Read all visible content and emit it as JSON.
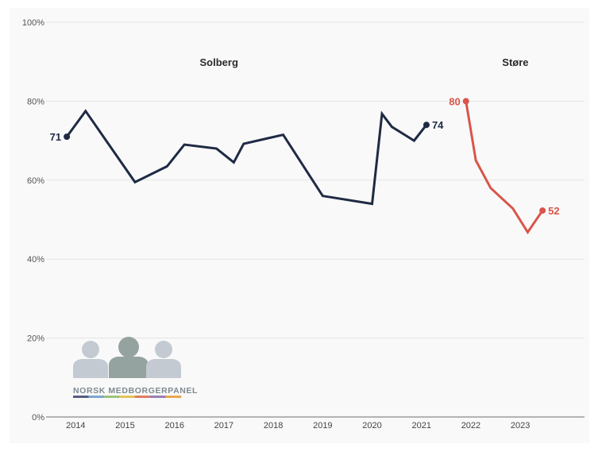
{
  "chart_data": {
    "type": "line",
    "y_ticks": [
      "0%",
      "20%",
      "40%",
      "60%",
      "80%",
      "100%"
    ],
    "ylim": [
      0,
      100
    ],
    "grid": true,
    "x_ticks": [
      "2014",
      "2015",
      "2016",
      "2017",
      "2018",
      "2019",
      "2020",
      "2021",
      "2022",
      "2023"
    ],
    "xlim": [
      2013.4,
      2024.3
    ],
    "periods": [
      {
        "label": "Solberg",
        "x": 2016.9
      },
      {
        "label": "Støre",
        "x": 2022.9
      }
    ],
    "series": [
      {
        "color": "#1f2a44",
        "x": [
          2013.82,
          2014.2,
          2015.2,
          2015.85,
          2016.2,
          2016.85,
          2017.2,
          2017.4,
          2017.85,
          2018.2,
          2019.0,
          2020.0,
          2020.2,
          2020.4,
          2020.85,
          2021.1
        ],
        "values": [
          71,
          77.5,
          59.5,
          63.5,
          69,
          68,
          64.5,
          69.2,
          70.5,
          71.5,
          56,
          54,
          76.8,
          73.5,
          70,
          74
        ],
        "start_label": "71",
        "end_label": "74"
      },
      {
        "color": "#d9554a",
        "x": [
          2021.9,
          2022.1,
          2022.4,
          2022.85,
          2023.15,
          2023.45
        ],
        "values": [
          80,
          65,
          58,
          52.8,
          46.8,
          52.3
        ],
        "start_label": "80",
        "end_label": "52"
      }
    ]
  },
  "logo": {
    "text": "NORSK MEDBORGERPANEL",
    "figure_colors": [
      "#c3cad1",
      "#94a39f",
      "#c3cad1"
    ],
    "stripe_colors": [
      "#555e80",
      "#7ca6d3",
      "#9bc47a",
      "#e4c35a",
      "#e07c63",
      "#9a7db8",
      "#e7a84f"
    ]
  }
}
